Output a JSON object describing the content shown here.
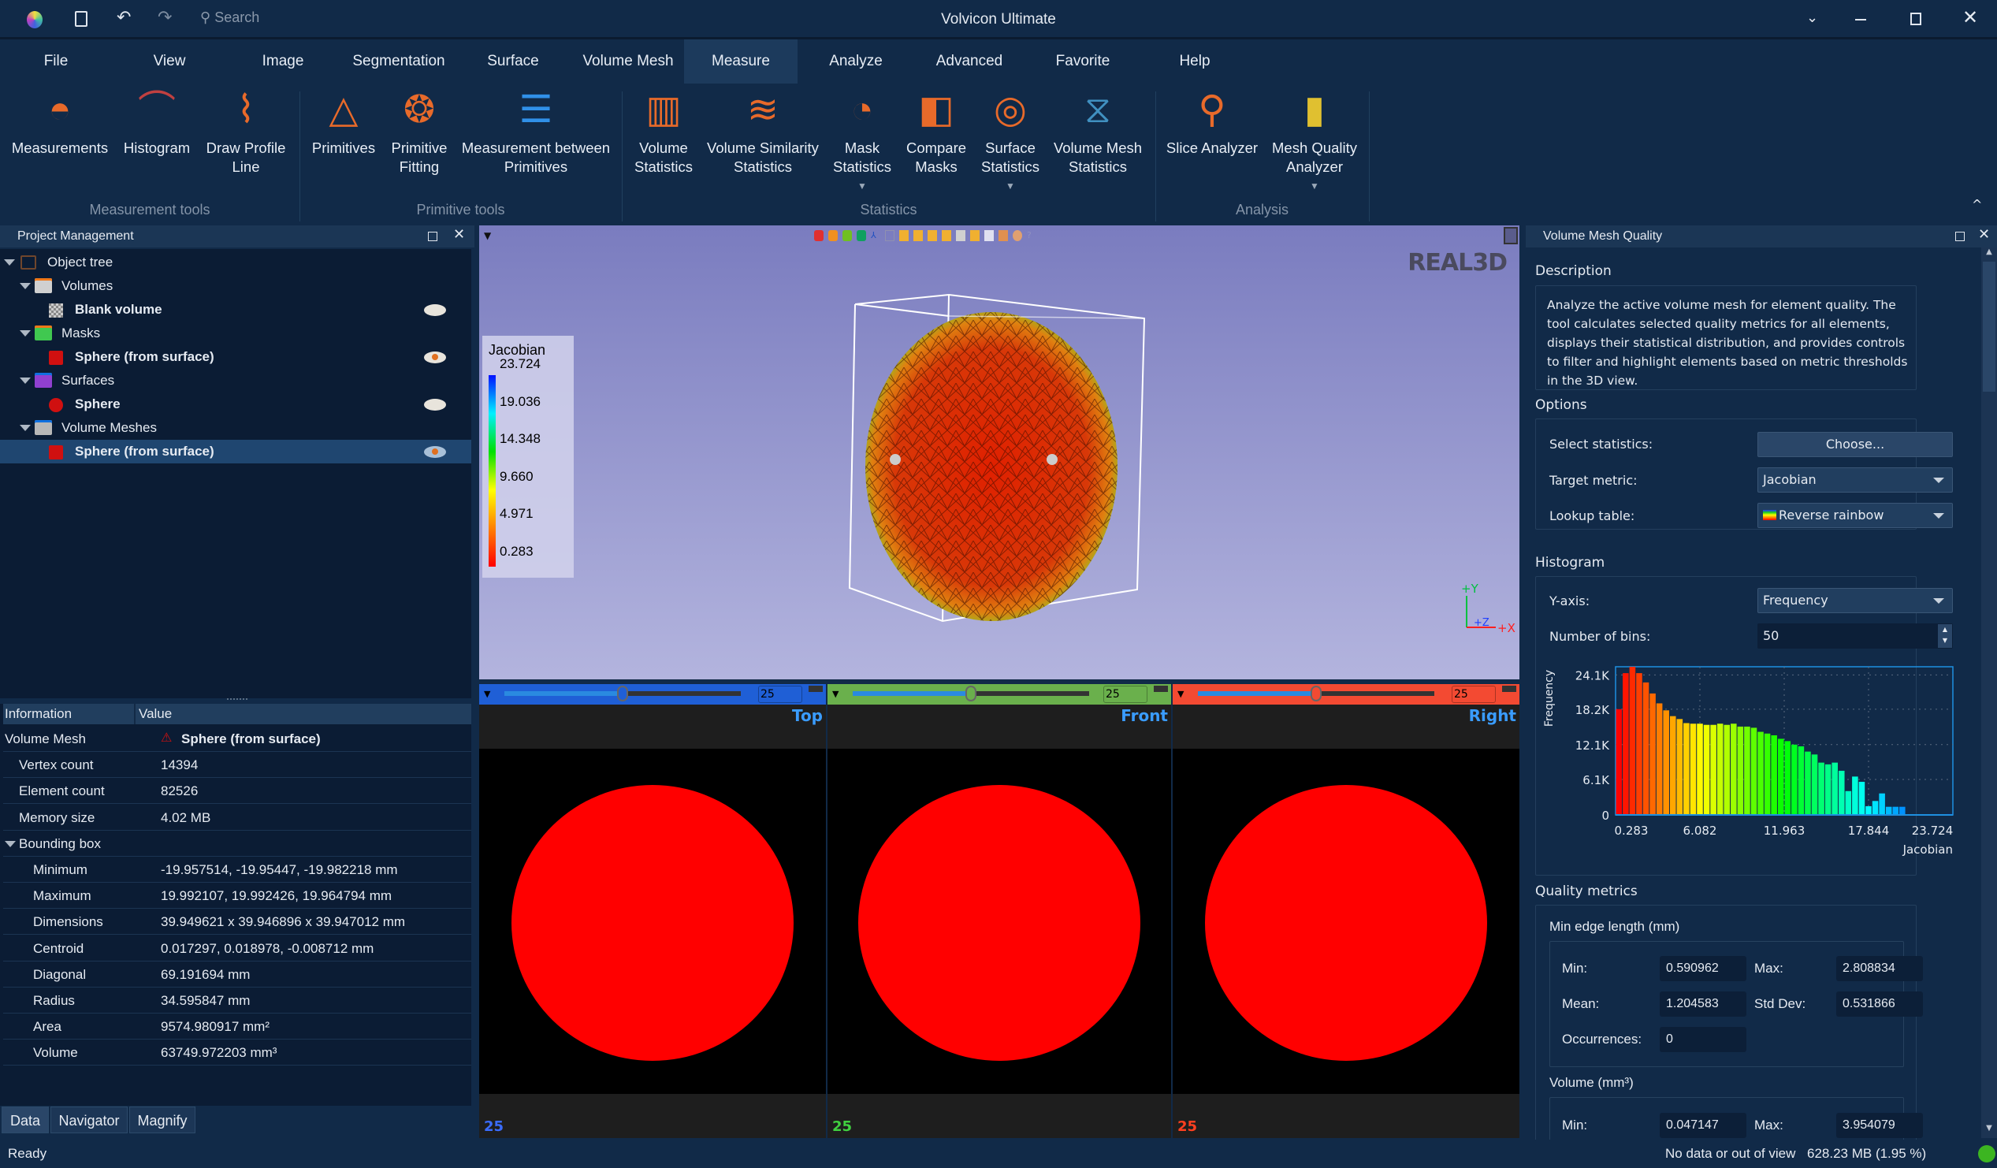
{
  "app": {
    "title": "Volvicon Ultimate",
    "search_placeholder": "Search"
  },
  "menu": [
    "File",
    "View",
    "Image",
    "Segmentation",
    "Surface",
    "Volume Mesh",
    "Measure",
    "Analyze",
    "Advanced",
    "Favorite",
    "Help"
  ],
  "menu_active": "Measure",
  "ribbon": {
    "buttons": [
      {
        "label": "Measurements",
        "icon": "protractor-icon"
      },
      {
        "label": "Histogram",
        "icon": "histogram-icon"
      },
      {
        "label": "Draw Profile\nLine",
        "icon": "profile-line-icon"
      },
      {
        "label": "Primitives",
        "icon": "primitives-icon"
      },
      {
        "label": "Primitive\nFitting",
        "icon": "primitive-fitting-icon"
      },
      {
        "label": "Measurement between\nPrimitives",
        "icon": "measure-between-icon"
      },
      {
        "label": "Volume\nStatistics",
        "icon": "volume-statistics-icon"
      },
      {
        "label": "Volume Similarity\nStatistics",
        "icon": "similarity-icon"
      },
      {
        "label": "Mask\nStatistics",
        "icon": "mask-statistics-icon",
        "dropdown": true
      },
      {
        "label": "Compare\nMasks",
        "icon": "compare-masks-icon"
      },
      {
        "label": "Surface\nStatistics",
        "icon": "surface-statistics-icon",
        "dropdown": true
      },
      {
        "label": "Volume Mesh\nStatistics",
        "icon": "volume-mesh-statistics-icon"
      },
      {
        "label": "Slice Analyzer",
        "icon": "slice-analyzer-icon"
      },
      {
        "label": "Mesh Quality\nAnalyzer",
        "icon": "mesh-quality-icon",
        "dropdown": true
      }
    ],
    "groups": [
      "Measurement tools",
      "Primitive tools",
      "Statistics",
      "Analysis"
    ]
  },
  "project": {
    "title": "Project Management",
    "tree": [
      {
        "label": "Object tree",
        "level": 0
      },
      {
        "label": "Volumes",
        "level": 1,
        "folder": "#d0d0d0",
        "tab": "#f07818"
      },
      {
        "label": "Blank volume",
        "level": 2,
        "bold": true,
        "eye": "closed"
      },
      {
        "label": "Masks",
        "level": 1,
        "folder": "#40c850",
        "tab": "#f07818"
      },
      {
        "label": "Sphere (from surface)",
        "level": 2,
        "bold": true,
        "eye": "open"
      },
      {
        "label": "Surfaces",
        "level": 1,
        "folder": "#9040d0",
        "tab": "#1070e0"
      },
      {
        "label": "Sphere",
        "level": 2,
        "bold": true,
        "eye": "closed"
      },
      {
        "label": "Volume Meshes",
        "level": 1,
        "folder": "#b8b8b8",
        "tab": "#1070e0"
      },
      {
        "label": "Sphere (from surface)",
        "level": 2,
        "bold": true,
        "eye": "open",
        "selected": true
      }
    ]
  },
  "info": {
    "headers": [
      "Information",
      "Value"
    ],
    "rows": [
      {
        "k": "Volume Mesh",
        "v": "Sphere (from surface)",
        "level": 0
      },
      {
        "k": "Vertex count",
        "v": "14394",
        "level": 1
      },
      {
        "k": "Element count",
        "v": "82526",
        "level": 1
      },
      {
        "k": "Memory size",
        "v": "4.02 MB",
        "level": 1
      },
      {
        "k": "Bounding box",
        "v": "",
        "level": 1,
        "expand": true
      },
      {
        "k": "Minimum",
        "v": "-19.957514, -19.95447, -19.982218 mm",
        "level": 2
      },
      {
        "k": "Maximum",
        "v": "19.992107, 19.992426, 19.964794 mm",
        "level": 2
      },
      {
        "k": "Dimensions",
        "v": "39.949621 x 39.946896 x 39.947012 mm",
        "level": 2
      },
      {
        "k": "Centroid",
        "v": "0.017297, 0.018978, -0.008712 mm",
        "level": 2
      },
      {
        "k": "Diagonal",
        "v": "69.191694 mm",
        "level": 2
      },
      {
        "k": "Radius",
        "v": "34.595847 mm",
        "level": 2
      },
      {
        "k": "Area",
        "v": "9574.980917 mm²",
        "level": 2
      },
      {
        "k": "Volume",
        "v": "63749.972203 mm³",
        "level": 2
      }
    ],
    "tabs": [
      "Data",
      "Navigator",
      "Magnify"
    ]
  },
  "viewport": {
    "legend_title": "Jacobian",
    "legend_ticks": [
      "23.724",
      "19.036",
      "14.348",
      "9.660",
      "4.971",
      "0.283"
    ],
    "logo": "REAL3D",
    "axes": [
      "+Y",
      "+Z",
      "+X"
    ]
  },
  "slices": [
    {
      "label": "Top",
      "value": "25",
      "color": "#1f5fd6",
      "pos": 0.5
    },
    {
      "label": "Front",
      "value": "25",
      "color": "#6ab04c",
      "pos": 0.5
    },
    {
      "label": "Right",
      "value": "25",
      "color": "#f34a32",
      "pos": 0.5
    }
  ],
  "quality": {
    "title": "Volume Mesh Quality",
    "description_label": "Description",
    "description": "Analyze the active volume mesh for element quality. The tool calculates selected quality metrics for all elements, displays their statistical distribution, and provides controls to filter and highlight elements based on metric thresholds in the 3D view.",
    "options_label": "Options",
    "select_statistics_label": "Select statistics:",
    "choose_button": "Choose...",
    "target_metric_label": "Target metric:",
    "target_metric": "Jacobian",
    "lookup_label": "Lookup table:",
    "lookup": "Reverse rainbow",
    "histogram_label": "Histogram",
    "yaxis_label": "Y-axis:",
    "yaxis": "Frequency",
    "bins_label": "Number of bins:",
    "bins": "50",
    "metrics_label": "Quality metrics",
    "min_edge": {
      "title": "Min edge length (mm)",
      "min": "0.590962",
      "max": "2.808834",
      "mean": "1.204583",
      "std": "0.531866",
      "occ": "0"
    },
    "volume": {
      "title": "Volume (mm³)",
      "min": "0.047147",
      "max": "3.954079"
    },
    "labels": {
      "min": "Min:",
      "max": "Max:",
      "mean": "Mean:",
      "std": "Std Dev:",
      "occ": "Occurrences:"
    }
  },
  "chart_data": {
    "type": "bar",
    "xlabel": "Jacobian",
    "ylabel": "Frequency",
    "xlim": [
      0.283,
      23.724
    ],
    "ylim": [
      0,
      25500
    ],
    "x_ticks": [
      "0.283",
      "6.082",
      "11.963",
      "17.844",
      "23.724"
    ],
    "y_ticks": [
      {
        "v": 0,
        "t": "0"
      },
      {
        "v": 6100,
        "t": "6.1K"
      },
      {
        "v": 12100,
        "t": "12.1K"
      },
      {
        "v": 18200,
        "t": "18.2K"
      },
      {
        "v": 24100,
        "t": "24.1K"
      }
    ],
    "grid": true,
    "colormap": "reverse rainbow",
    "values": [
      18200,
      24400,
      25500,
      24400,
      22800,
      20900,
      19200,
      18000,
      17000,
      16500,
      15800,
      15700,
      15700,
      15500,
      15500,
      15700,
      15500,
      15700,
      15200,
      15200,
      15000,
      14300,
      14000,
      13700,
      13100,
      12700,
      12100,
      11800,
      10900,
      10400,
      9000,
      8700,
      9000,
      7600,
      4100,
      6600,
      5700,
      1500,
      2400,
      3700,
      1400,
      1400,
      1400,
      100,
      100,
      100,
      100,
      100,
      100,
      150
    ]
  },
  "status": {
    "left": "Ready",
    "view": "No data or out of view",
    "memory": "628.23 MB (1.95 %)",
    "ok_color": "#3cb521"
  }
}
